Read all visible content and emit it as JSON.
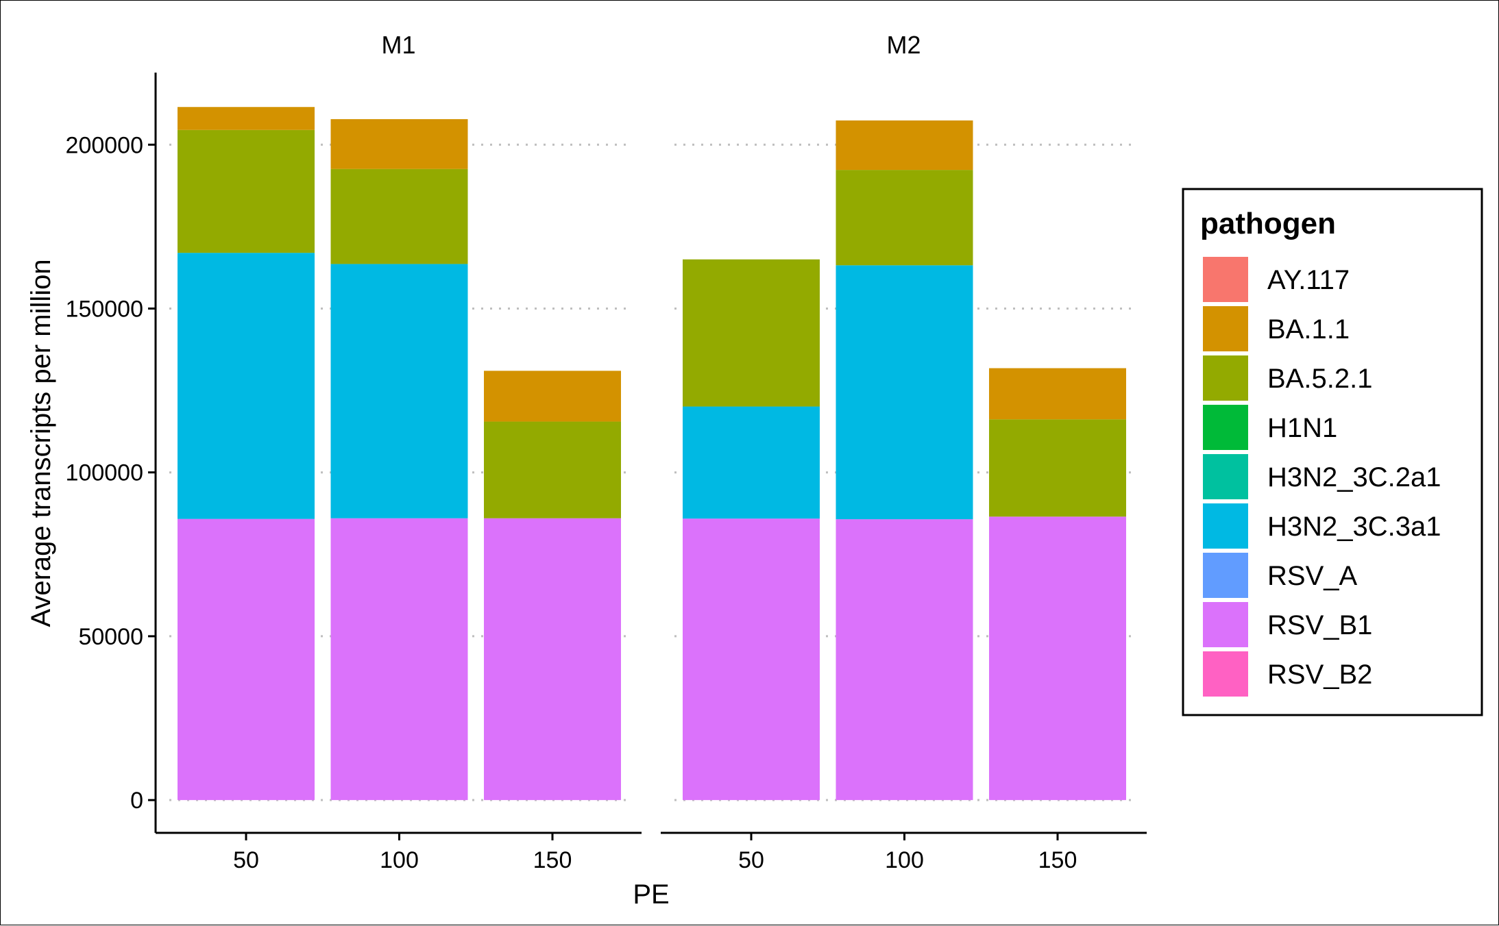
{
  "chart_data": {
    "type": "bar",
    "stacked": true,
    "facets": [
      "M1",
      "M2"
    ],
    "categories": [
      "50",
      "100",
      "150"
    ],
    "xlabel": "PE",
    "ylabel": "Average transcripts per million",
    "ylim": [
      -10000,
      222000
    ],
    "yticks": [
      0,
      50000,
      100000,
      150000,
      200000
    ],
    "ytick_labels": [
      "0",
      "50000",
      "100000",
      "150000",
      "200000"
    ],
    "grid": "horizontal-dotted",
    "legend": {
      "title": "pathogen",
      "position": "right",
      "entries": [
        "AY.117",
        "BA.1.1",
        "BA.5.2.1",
        "H1N1",
        "H3N2_3C.2a1",
        "H3N2_3C.3a1",
        "RSV_A",
        "RSV_B1",
        "RSV_B2"
      ]
    },
    "colors": {
      "AY.117": "#F8766D",
      "BA.1.1": "#D39200",
      "BA.5.2.1": "#93AA00",
      "H1N1": "#00BA38",
      "H3N2_3C.2a1": "#00C19F",
      "H3N2_3C.3a1": "#00B9E3",
      "RSV_A": "#619CFF",
      "RSV_B1": "#DB72FB",
      "RSV_B2": "#FF61C3"
    },
    "stack_order": [
      "RSV_B1",
      "H3N2_3C.3a1",
      "BA.5.2.1",
      "BA.1.1"
    ],
    "series": [
      {
        "name": "RSV_B1",
        "facet_values": {
          "M1": [
            85800,
            86000,
            86000
          ],
          "M2": [
            85900,
            85700,
            86500
          ]
        }
      },
      {
        "name": "H3N2_3C.3a1",
        "facet_values": {
          "M1": [
            81200,
            77600,
            0
          ],
          "M2": [
            34200,
            77500,
            0
          ]
        }
      },
      {
        "name": "BA.5.2.1",
        "facet_values": {
          "M1": [
            37500,
            29000,
            29500
          ],
          "M2": [
            44900,
            29100,
            29700
          ]
        }
      },
      {
        "name": "BA.1.1",
        "facet_values": {
          "M1": [
            7000,
            15200,
            15500
          ],
          "M2": [
            0,
            15100,
            15600
          ]
        }
      }
    ]
  }
}
